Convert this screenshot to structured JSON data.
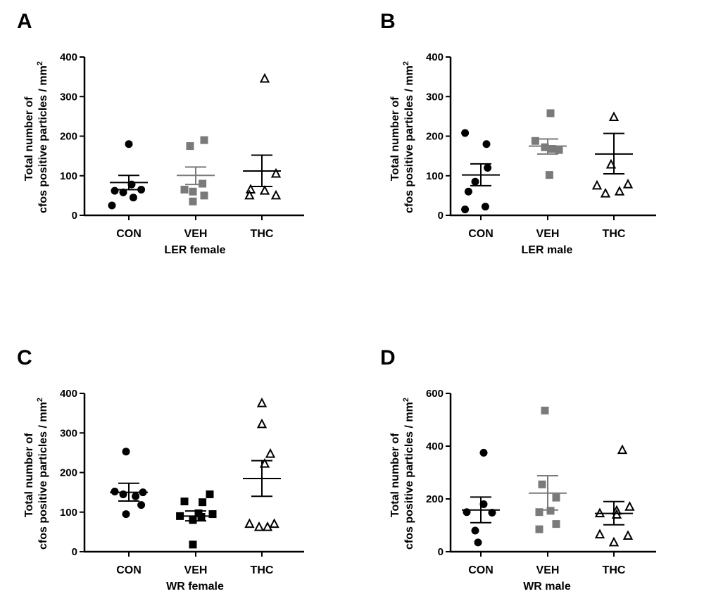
{
  "figure": {
    "ylabel_line1": "Total number of",
    "ylabel_line2": "cfos positive particles / mm",
    "ylabel_sup": "2",
    "marker_colors": {
      "CON": "#000000",
      "VEH": "#7a7a7a",
      "VEH_dark": "#000000",
      "THC": "#000000"
    }
  },
  "chart_data": [
    {
      "type": "scatter",
      "panel": "A",
      "xlabel": "LER female",
      "ylabel": "Total number of cfos positive particles / mm2",
      "ylim": [
        0,
        400
      ],
      "yticks": [
        0,
        100,
        200,
        300,
        400
      ],
      "categories": [
        "CON",
        "VEH",
        "THC"
      ],
      "series": [
        {
          "name": "CON",
          "marker": "circle",
          "color": "#000000",
          "mean": 83,
          "sem_low": 65,
          "sem_high": 101,
          "points": [
            [
              -0.25,
              62
            ],
            [
              -0.1,
              58
            ],
            [
              0.05,
              78
            ],
            [
              0.22,
              65
            ],
            [
              -0.3,
              25
            ],
            [
              0.08,
              45
            ],
            [
              0.0,
              180
            ]
          ]
        },
        {
          "name": "VEH",
          "marker": "square",
          "color": "#7a7a7a",
          "mean": 101,
          "sem_low": 78,
          "sem_high": 122,
          "points": [
            [
              -0.1,
              175
            ],
            [
              0.15,
              190
            ],
            [
              -0.2,
              65
            ],
            [
              0.12,
              80
            ],
            [
              -0.05,
              60
            ],
            [
              0.15,
              50
            ],
            [
              -0.05,
              35
            ]
          ]
        },
        {
          "name": "THC",
          "marker": "triangle",
          "color": "#000000",
          "mean": 112,
          "sem_low": 73,
          "sem_high": 152,
          "points": [
            [
              0.05,
              345
            ],
            [
              0.25,
              105
            ],
            [
              -0.2,
              65
            ],
            [
              0.05,
              62
            ],
            [
              -0.22,
              50
            ],
            [
              0.25,
              50
            ]
          ]
        }
      ]
    },
    {
      "type": "scatter",
      "panel": "B",
      "xlabel": "LER male",
      "ylabel": "Total number of cfos positive particles / mm2",
      "ylim": [
        0,
        400
      ],
      "yticks": [
        0,
        100,
        200,
        300,
        400
      ],
      "categories": [
        "CON",
        "VEH",
        "THC"
      ],
      "series": [
        {
          "name": "CON",
          "marker": "circle",
          "color": "#000000",
          "mean": 102,
          "sem_low": 75,
          "sem_high": 130,
          "points": [
            [
              -0.28,
              208
            ],
            [
              0.1,
              180
            ],
            [
              0.12,
              120
            ],
            [
              -0.1,
              85
            ],
            [
              -0.22,
              60
            ],
            [
              0.08,
              22
            ],
            [
              -0.28,
              15
            ]
          ]
        },
        {
          "name": "VEH",
          "marker": "square",
          "color": "#7a7a7a",
          "mean": 175,
          "sem_low": 155,
          "sem_high": 193,
          "points": [
            [
              0.05,
              258
            ],
            [
              -0.22,
              188
            ],
            [
              0.2,
              165
            ],
            [
              -0.05,
              172
            ],
            [
              0.08,
              168
            ],
            [
              0.03,
              102
            ]
          ]
        },
        {
          "name": "THC",
          "marker": "triangle",
          "color": "#000000",
          "mean": 155,
          "sem_low": 105,
          "sem_high": 207,
          "points": [
            [
              0.0,
              248
            ],
            [
              -0.05,
              128
            ],
            [
              -0.3,
              75
            ],
            [
              0.25,
              78
            ],
            [
              -0.15,
              55
            ],
            [
              0.1,
              60
            ]
          ]
        }
      ]
    },
    {
      "type": "scatter",
      "panel": "C",
      "xlabel": "WR female",
      "ylabel": "Total number of cfos positive particles / mm2",
      "ylim": [
        0,
        400
      ],
      "yticks": [
        0,
        100,
        200,
        300,
        400
      ],
      "categories": [
        "CON",
        "VEH",
        "THC"
      ],
      "series": [
        {
          "name": "CON",
          "marker": "circle",
          "color": "#000000",
          "mean": 150,
          "sem_low": 128,
          "sem_high": 173,
          "points": [
            [
              -0.05,
              253
            ],
            [
              -0.25,
              152
            ],
            [
              -0.1,
              145
            ],
            [
              0.12,
              140
            ],
            [
              0.25,
              150
            ],
            [
              0.22,
              118
            ],
            [
              -0.05,
              95
            ]
          ]
        },
        {
          "name": "VEH",
          "marker": "square",
          "color": "#000000",
          "mean": 90,
          "sem_low": 78,
          "sem_high": 103,
          "points": [
            [
              0.25,
              145
            ],
            [
              -0.2,
              127
            ],
            [
              0.12,
              125
            ],
            [
              0.05,
              97
            ],
            [
              -0.28,
              90
            ],
            [
              0.1,
              88
            ],
            [
              0.3,
              95
            ],
            [
              -0.05,
              80
            ],
            [
              -0.05,
              18
            ]
          ]
        },
        {
          "name": "THC",
          "marker": "triangle",
          "color": "#000000",
          "mean": 185,
          "sem_low": 140,
          "sem_high": 230,
          "points": [
            [
              0.0,
              375
            ],
            [
              0.0,
              322
            ],
            [
              0.15,
              247
            ],
            [
              0.05,
              222
            ],
            [
              -0.22,
              70
            ],
            [
              0.22,
              70
            ],
            [
              -0.05,
              62
            ],
            [
              0.1,
              62
            ]
          ]
        }
      ]
    },
    {
      "type": "scatter",
      "panel": "D",
      "xlabel": "WR male",
      "ylabel": "Total number of cfos positive particles / mm2",
      "ylim": [
        0,
        600
      ],
      "yticks": [
        0,
        200,
        400,
        600
      ],
      "categories": [
        "CON",
        "VEH",
        "THC"
      ],
      "series": [
        {
          "name": "CON",
          "marker": "circle",
          "color": "#000000",
          "mean": 158,
          "sem_low": 110,
          "sem_high": 207,
          "points": [
            [
              0.05,
              375
            ],
            [
              0.05,
              180
            ],
            [
              -0.25,
              150
            ],
            [
              0.2,
              148
            ],
            [
              -0.1,
              80
            ],
            [
              -0.05,
              35
            ]
          ]
        },
        {
          "name": "VEH",
          "marker": "square",
          "color": "#7a7a7a",
          "mean": 222,
          "sem_low": 158,
          "sem_high": 288,
          "points": [
            [
              -0.05,
              535
            ],
            [
              -0.1,
              255
            ],
            [
              0.15,
              205
            ],
            [
              -0.15,
              150
            ],
            [
              0.05,
              155
            ],
            [
              0.15,
              105
            ],
            [
              -0.15,
              85
            ]
          ]
        },
        {
          "name": "THC",
          "marker": "triangle",
          "color": "#000000",
          "mean": 145,
          "sem_low": 102,
          "sem_high": 190,
          "points": [
            [
              0.15,
              385
            ],
            [
              0.28,
              170
            ],
            [
              0.05,
              155
            ],
            [
              -0.25,
              145
            ],
            [
              0.05,
              140
            ],
            [
              -0.25,
              65
            ],
            [
              0.25,
              60
            ],
            [
              0.0,
              35
            ]
          ]
        }
      ]
    }
  ]
}
